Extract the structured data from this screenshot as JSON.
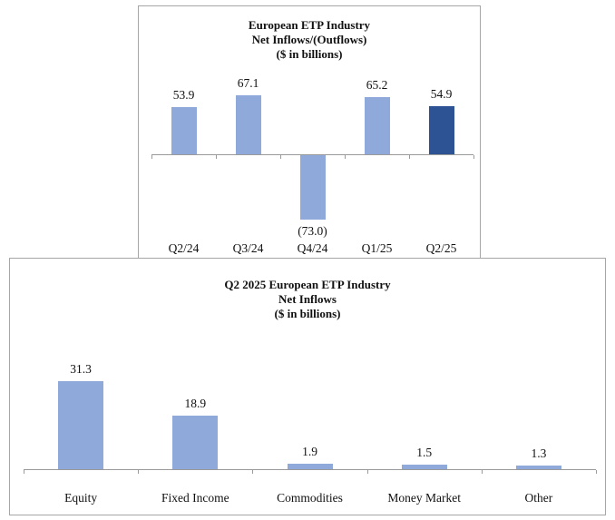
{
  "colors": {
    "bar_light": "#8FA9DB",
    "bar_dark": "#2E5395",
    "box_border": "#A6A6A6",
    "axis_line": "#9A9A9A",
    "text": "#111111"
  },
  "chart_data": [
    {
      "type": "bar",
      "title": "European ETP Industry Net Inflows/(Outflows) ($ in billions)",
      "title_lines": [
        "European ETP Industry",
        "Net Inflows/(Outflows)",
        "($ in billions)"
      ],
      "categories": [
        "Q2/24",
        "Q3/24",
        "Q4/24",
        "Q1/25",
        "Q2/25"
      ],
      "values": [
        53.9,
        67.1,
        -73.0,
        65.2,
        54.9
      ],
      "value_labels": [
        "53.9",
        "67.1",
        "(73.0)",
        "65.2",
        "54.9"
      ],
      "bar_colors": [
        "#8FA9DB",
        "#8FA9DB",
        "#8FA9DB",
        "#8FA9DB",
        "#2E5395"
      ],
      "xlabel": "",
      "ylabel": "",
      "ylim": [
        -80,
        80
      ],
      "grid": false,
      "legend": "none"
    },
    {
      "type": "bar",
      "title": "Q2 2025 European ETP Industry Net Inflows ($ in billions)",
      "title_lines": [
        "Q2 2025 European ETP Industry",
        "Net Inflows",
        "($ in billions)"
      ],
      "categories": [
        "Equity",
        "Fixed Income",
        "Commodities",
        "Money Market",
        "Other"
      ],
      "values": [
        31.3,
        18.9,
        1.9,
        1.5,
        1.3
      ],
      "value_labels": [
        "31.3",
        "18.9",
        "1.9",
        "1.5",
        "1.3"
      ],
      "bar_colors": [
        "#8FA9DB",
        "#8FA9DB",
        "#8FA9DB",
        "#8FA9DB",
        "#8FA9DB"
      ],
      "xlabel": "",
      "ylabel": "",
      "ylim": [
        0,
        35
      ],
      "grid": false,
      "legend": "none"
    }
  ]
}
